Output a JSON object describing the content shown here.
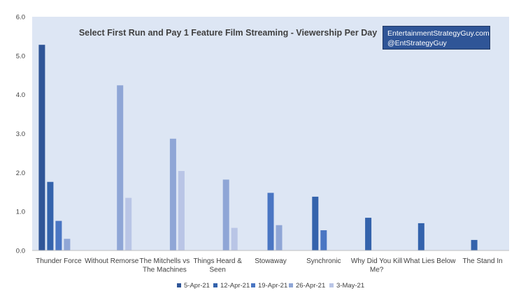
{
  "chart_data": {
    "type": "bar",
    "title": "Select First Run and Pay 1 Feature Film Streaming - Viewership Per Day",
    "xlabel": "",
    "ylabel": "",
    "ylim": [
      0,
      6
    ],
    "yticks": [
      "0.0",
      "1.0",
      "2.0",
      "3.0",
      "4.0",
      "5.0",
      "6.0"
    ],
    "grid": false,
    "legend_position": "bottom",
    "categories": [
      "Thunder Force",
      "Without Remorse",
      "The Mitchells vs The Machines",
      "Things Heard & Seen",
      "Stowaway",
      "Synchronic",
      "Why Did You Kill Me?",
      "What Lies Below",
      "The Stand In"
    ],
    "category_lines": [
      [
        "Thunder Force"
      ],
      [
        "Without Remorse"
      ],
      [
        "The Mitchells vs",
        "The Machines"
      ],
      [
        "Things Heard &",
        "Seen"
      ],
      [
        "Stowaway"
      ],
      [
        "Synchronic"
      ],
      [
        "Why Did You Kill",
        "Me?"
      ],
      [
        "What Lies Below"
      ],
      [
        "The Stand In"
      ]
    ],
    "series": [
      {
        "name": "5-Apr-21",
        "color": "#2f5597",
        "values": [
          5.28,
          null,
          null,
          null,
          null,
          null,
          null,
          null,
          null
        ]
      },
      {
        "name": "12-Apr-21",
        "color": "#3463ac",
        "values": [
          1.76,
          null,
          null,
          null,
          null,
          1.38,
          0.84,
          0.7,
          0.27
        ]
      },
      {
        "name": "19-Apr-21",
        "color": "#4a76c3",
        "values": [
          0.76,
          null,
          null,
          null,
          1.48,
          0.52,
          null,
          null,
          null
        ]
      },
      {
        "name": "26-Apr-21",
        "color": "#8fa6d6",
        "values": [
          0.3,
          4.24,
          2.87,
          1.82,
          0.65,
          null,
          null,
          null,
          null
        ]
      },
      {
        "name": "3-May-21",
        "color": "#b9c5e6",
        "values": [
          null,
          1.35,
          2.04,
          0.58,
          null,
          null,
          null,
          null,
          null
        ]
      }
    ],
    "colors": {
      "plot_background": "#dde6f4",
      "axis": "#555555",
      "text": "#404040"
    }
  },
  "watermark": {
    "line1": "EntertainmentStrategyGuy.com",
    "line2": "@EntStrategyGuy"
  }
}
